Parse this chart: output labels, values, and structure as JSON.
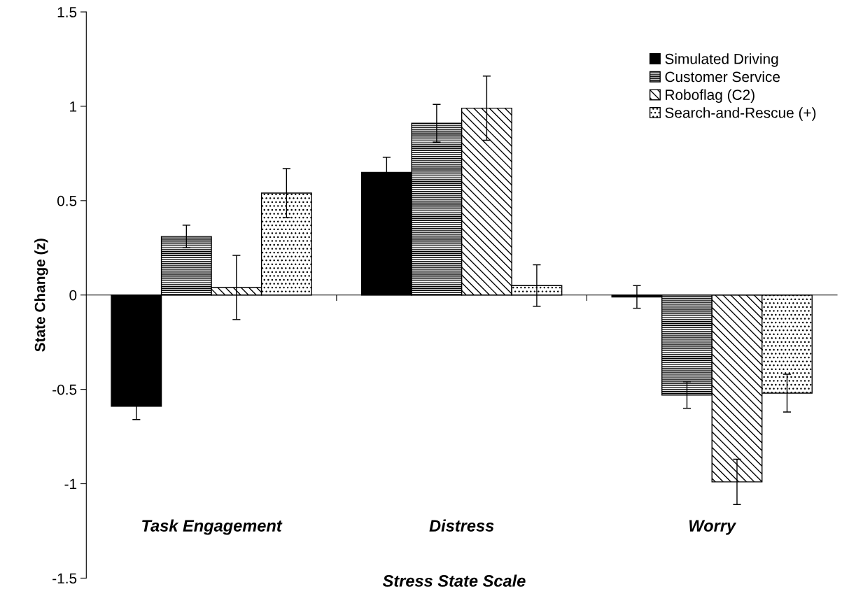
{
  "chart_data": {
    "type": "bar",
    "xlabel": "Stress State Scale",
    "ylabel": "State Change (z)",
    "categories": [
      "Task Engagement",
      "Distress",
      "Worry"
    ],
    "series": [
      {
        "name": "Simulated Driving",
        "color": "#000000",
        "values": [
          -0.59,
          0.65,
          -0.01
        ],
        "errors": [
          0.07,
          0.08,
          0.06
        ]
      },
      {
        "name": "Customer Service",
        "color": "#000000",
        "values": [
          0.31,
          0.91,
          -0.53
        ],
        "errors": [
          0.06,
          0.1,
          0.07
        ]
      },
      {
        "name": "Roboflag (C2)",
        "color": "#000000",
        "values": [
          0.04,
          0.99,
          -0.99
        ],
        "errors": [
          0.17,
          0.17,
          0.12
        ]
      },
      {
        "name": "Search-and-Rescue (+)",
        "color": "#000000",
        "values": [
          0.54,
          0.05,
          -0.52
        ],
        "errors": [
          0.13,
          0.11,
          0.1
        ]
      }
    ],
    "ylim": [
      -1.5,
      1.5
    ],
    "yticks": [
      {
        "value": -1.5,
        "label": "-1.5"
      },
      {
        "value": -1,
        "label": "-1"
      },
      {
        "value": -0.5,
        "label": "-0.5"
      },
      0,
      0.5,
      1,
      1.5
    ],
    "legend": "top right"
  }
}
